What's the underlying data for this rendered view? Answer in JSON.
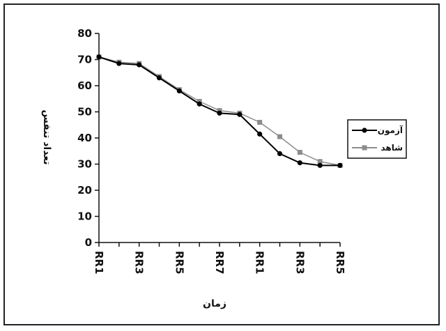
{
  "chart_data": {
    "type": "line",
    "categories": [
      "RR1",
      "",
      "RR3",
      "",
      "RR5",
      "",
      "RR7",
      "",
      "RR1",
      "",
      "RR3",
      "",
      "RR5"
    ],
    "ylim": [
      0,
      80
    ],
    "yticks": [
      0,
      10,
      20,
      30,
      40,
      50,
      60,
      70,
      80
    ],
    "xlabel": "زمان",
    "ylabel": "تعداد تنفس",
    "legend_position": "right",
    "series": [
      {
        "name": "آزمون",
        "color": "#000000",
        "marker": "circle",
        "values": [
          71,
          68.5,
          68,
          63,
          58,
          53,
          49.5,
          49,
          41.5,
          34,
          30.5,
          29.5,
          29.5
        ]
      },
      {
        "name": "شاهد",
        "color": "#8c8c8c",
        "marker": "square",
        "values": [
          71,
          69,
          68.5,
          63.5,
          58.5,
          54,
          50.5,
          49.5,
          46,
          40.5,
          34.5,
          31,
          29.5
        ]
      }
    ]
  }
}
